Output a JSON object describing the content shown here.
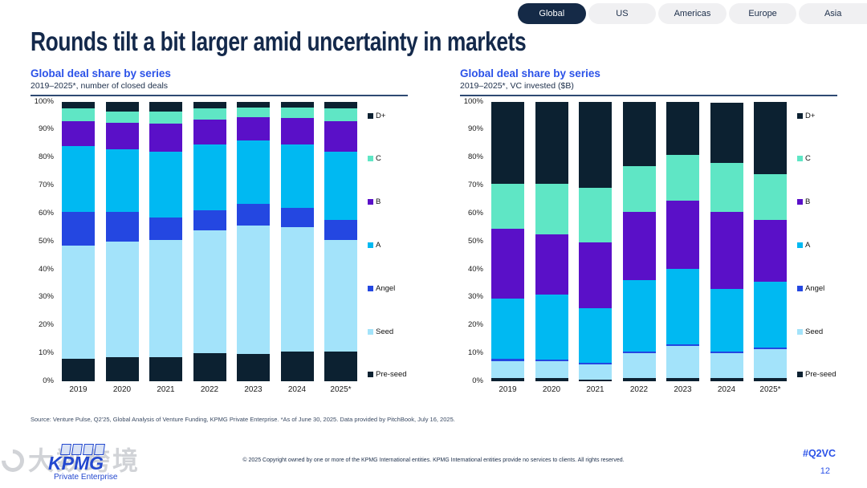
{
  "title": "Rounds tilt a bit larger amid uncertainty in markets",
  "tabs": [
    {
      "label": "Global",
      "active": true
    },
    {
      "label": "US",
      "active": false
    },
    {
      "label": "Americas",
      "active": false
    },
    {
      "label": "Europe",
      "active": false
    },
    {
      "label": "Asia",
      "active": false
    }
  ],
  "colors": {
    "active_tab_bg": "#152a47",
    "inactive_tab_bg": "#f0f0f2",
    "title_navy": "#14294b",
    "chart_title_blue": "#2b52e8",
    "underline_navy": "#2e4a72",
    "pre_seed": "#0c2131",
    "seed": "#a3e3fa",
    "angel": "#2447e1",
    "series_a": "#00b9f2",
    "series_b": "#5a10c8",
    "series_c": "#5fe6c5",
    "d_plus": "#0c2131"
  },
  "chart_data": [
    {
      "type": "bar",
      "variant": "stacked-100",
      "title": "Global deal share by series",
      "subtitle": "2019–2025*, number of closed deals",
      "categories": [
        "2019",
        "2020",
        "2021",
        "2022",
        "2023",
        "2024",
        "2025*"
      ],
      "ylim": [
        0,
        100
      ],
      "y_ticks": [
        "100%",
        "90%",
        "80%",
        "70%",
        "60%",
        "50%",
        "40%",
        "30%",
        "20%",
        "10%",
        "0%"
      ],
      "grid": false,
      "legend_position": "right",
      "series": [
        {
          "name": "Pre-seed",
          "color": "#0c2131",
          "values": [
            8,
            8.5,
            8.5,
            10,
            9.5,
            10.5,
            10.5
          ]
        },
        {
          "name": "Seed",
          "color": "#a3e3fa",
          "values": [
            40.5,
            41.5,
            42,
            44,
            46,
            44.5,
            40
          ]
        },
        {
          "name": "Angel",
          "color": "#2447e1",
          "values": [
            12,
            10.5,
            8,
            7,
            8,
            7,
            7
          ]
        },
        {
          "name": "A",
          "color": "#00b9f2",
          "values": [
            23.5,
            22.5,
            23.5,
            23.5,
            22.5,
            22.5,
            24.5
          ]
        },
        {
          "name": "B",
          "color": "#5a10c8",
          "values": [
            9,
            9.5,
            10,
            9,
            8.5,
            9.5,
            11
          ]
        },
        {
          "name": "C",
          "color": "#5fe6c5",
          "values": [
            4.5,
            4,
            4.5,
            4,
            3.5,
            4,
            4.5
          ]
        },
        {
          "name": "D+",
          "color": "#0c2131",
          "values": [
            2.5,
            3.5,
            3.5,
            2.5,
            2,
            2,
            2.5
          ]
        }
      ],
      "legend": [
        "D+",
        "C",
        "B",
        "A",
        "Angel",
        "Seed",
        "Pre-seed"
      ]
    },
    {
      "type": "bar",
      "variant": "stacked-100",
      "title": "Global deal share by series",
      "subtitle": "2019–2025*, VC invested ($B)",
      "categories": [
        "2019",
        "2020",
        "2021",
        "2022",
        "2023",
        "2024",
        "2025*"
      ],
      "ylim": [
        0,
        100
      ],
      "y_ticks": [
        "100%",
        "90%",
        "80%",
        "70%",
        "60%",
        "50%",
        "40%",
        "30%",
        "20%",
        "10%",
        "0%"
      ],
      "grid": false,
      "legend_position": "right",
      "series": [
        {
          "name": "Pre-seed",
          "color": "#0c2131",
          "values": [
            1,
            1,
            0.5,
            1,
            1,
            1,
            1
          ]
        },
        {
          "name": "Seed",
          "color": "#a3e3fa",
          "values": [
            6,
            6,
            5.5,
            9,
            11.5,
            9,
            10.5
          ]
        },
        {
          "name": "Angel",
          "color": "#2447e1",
          "values": [
            1,
            0.5,
            0.5,
            0.5,
            0.5,
            0.5,
            0.5
          ]
        },
        {
          "name": "A",
          "color": "#00b9f2",
          "values": [
            21.5,
            23.5,
            19.5,
            25.5,
            27,
            22.5,
            23.5
          ]
        },
        {
          "name": "B",
          "color": "#5a10c8",
          "values": [
            25,
            21.5,
            23.5,
            24.5,
            24.5,
            27.5,
            22
          ]
        },
        {
          "name": "C",
          "color": "#5fe6c5",
          "values": [
            16,
            18,
            19.5,
            16.5,
            16.5,
            17.5,
            16.5
          ]
        },
        {
          "name": "D+",
          "color": "#0c2131",
          "values": [
            29.5,
            29.5,
            31,
            23,
            19,
            21.5,
            26
          ]
        }
      ],
      "legend": [
        "D+",
        "C",
        "B",
        "A",
        "Angel",
        "Seed",
        "Pre-seed"
      ]
    }
  ],
  "footer": {
    "source": "Source: Venture Pulse, Q2'25, Global Analysis of Venture Funding, KPMG Private Enterprise. *As of June 30, 2025. Data provided by PitchBook, July 16, 2025.",
    "copyright": "© 2025 Copyright owned by one or more of the KPMG International entities. KPMG International entities provide no services to clients. All rights reserved.",
    "hashtag": "#Q2VC",
    "page_number": "12"
  },
  "logo": {
    "brand": "KPMG",
    "sub": "Private Enterprise"
  },
  "watermark": {
    "text": "大数跨境"
  }
}
